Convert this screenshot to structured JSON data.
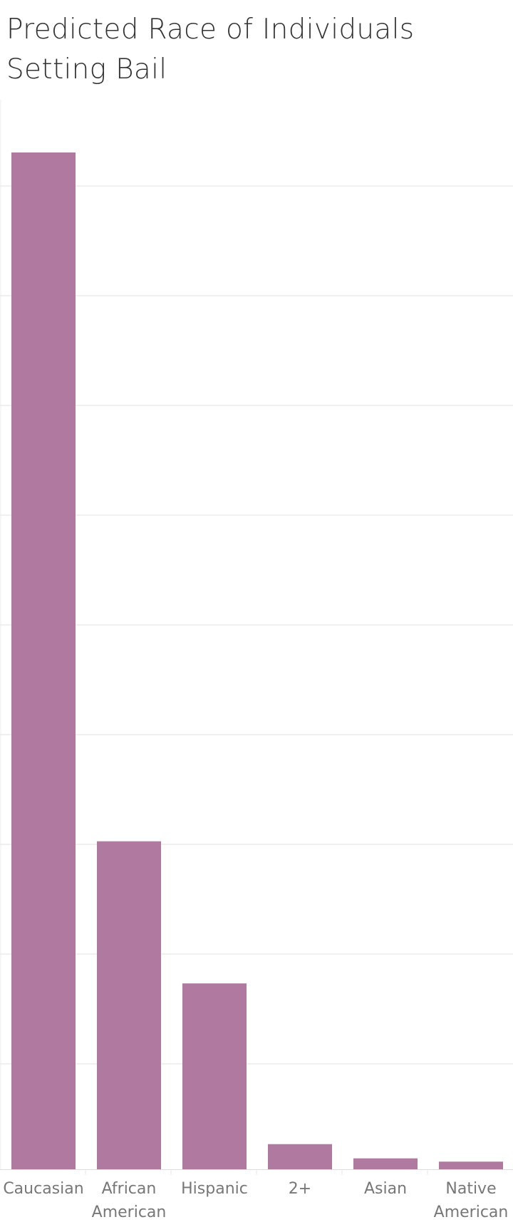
{
  "chart_data": {
    "type": "bar",
    "title": "Predicted Race of Individuals Setting Bail",
    "categories": [
      [
        "Caucasian"
      ],
      [
        "African",
        "American"
      ],
      [
        "Hispanic"
      ],
      [
        "2+"
      ],
      [
        "Asian"
      ],
      [
        "Native",
        "American"
      ]
    ],
    "values": [
      9.3,
      3.0,
      1.7,
      0.23,
      0.1,
      0.07
    ],
    "ylim": [
      0,
      9.3
    ],
    "grid": true,
    "colors": {
      "bar": "#b0799f",
      "grid": "#ececec",
      "axis": "#dddddd"
    }
  }
}
